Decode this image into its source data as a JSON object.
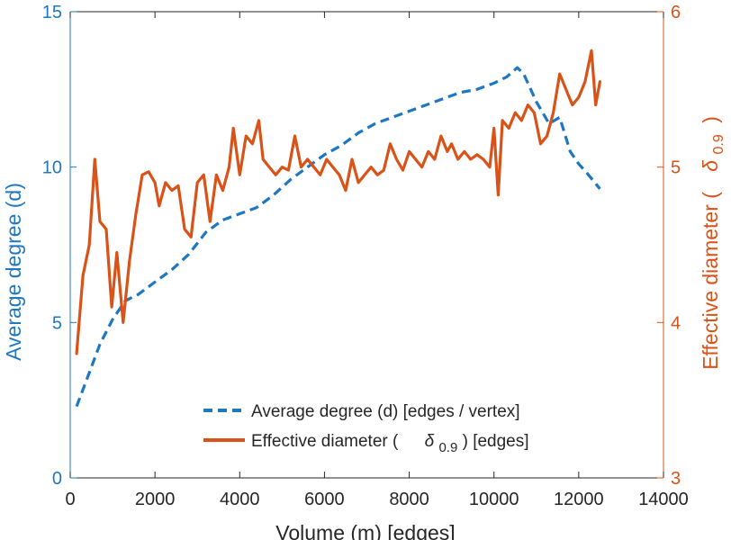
{
  "chart_data": {
    "type": "line",
    "title": "",
    "xlabel": "Volume (m) [edges]",
    "ylabel_left": "Average degree (d)",
    "ylabel_right_prefix": "Effective diameter (",
    "ylabel_right_symbol": "δ",
    "ylabel_right_sub": "0.9",
    "ylabel_right_suffix": ")",
    "xlim": [
      0,
      14000
    ],
    "xticks": [
      "0",
      "2000",
      "4000",
      "6000",
      "8000",
      "10000",
      "12000",
      "14000"
    ],
    "ylim_left": [
      0,
      15
    ],
    "yticks_left": [
      "0",
      "5",
      "10",
      "15"
    ],
    "ylim_right": [
      3,
      6
    ],
    "yticks_right": [
      "3",
      "4",
      "5",
      "6"
    ],
    "legend_position": "bottom-right",
    "colors": {
      "left_axis": "#1f77c0",
      "right_axis": "#d95319",
      "text": "#262626"
    },
    "series": [
      {
        "name": "Average degree (d) [edges / vertex]",
        "axis": "left",
        "style": "dashed",
        "color": "#1f77c0",
        "x": [
          150,
          400,
          700,
          1000,
          1300,
          1600,
          2000,
          2400,
          2800,
          3200,
          3600,
          4000,
          4400,
          4800,
          5200,
          5600,
          6000,
          6400,
          6800,
          7200,
          7600,
          8000,
          8400,
          8800,
          9200,
          9600,
          10000,
          10300,
          10550,
          10700,
          11000,
          11300,
          11550,
          11800,
          12000,
          12200,
          12500
        ],
        "values": [
          2.3,
          3.2,
          4.3,
          5.1,
          5.7,
          5.9,
          6.3,
          6.7,
          7.2,
          7.9,
          8.3,
          8.5,
          8.7,
          9.1,
          9.6,
          10.0,
          10.4,
          10.7,
          11.1,
          11.4,
          11.6,
          11.8,
          12.0,
          12.2,
          12.4,
          12.5,
          12.7,
          12.9,
          13.2,
          13.0,
          12.1,
          11.4,
          11.6,
          10.5,
          10.1,
          9.8,
          9.3
        ]
      },
      {
        "name_prefix": "Effective diameter (",
        "name_symbol": "δ",
        "name_sub": "0.9",
        "name_suffix": ") [edges]",
        "axis": "right",
        "style": "solid",
        "color": "#d95319",
        "x": [
          150,
          300,
          450,
          580,
          700,
          850,
          980,
          1100,
          1250,
          1400,
          1550,
          1700,
          1850,
          2000,
          2100,
          2250,
          2400,
          2550,
          2700,
          2850,
          3000,
          3150,
          3300,
          3450,
          3600,
          3750,
          3850,
          4000,
          4150,
          4300,
          4450,
          4550,
          4700,
          4850,
          5000,
          5150,
          5300,
          5450,
          5600,
          5750,
          5900,
          6050,
          6200,
          6350,
          6500,
          6650,
          6800,
          6950,
          7100,
          7250,
          7400,
          7550,
          7700,
          7850,
          8000,
          8150,
          8300,
          8450,
          8600,
          8750,
          8900,
          9000,
          9150,
          9300,
          9450,
          9600,
          9750,
          9900,
          10000,
          10100,
          10200,
          10350,
          10500,
          10650,
          10800,
          10950,
          11100,
          11250,
          11400,
          11550,
          11700,
          11850,
          12000,
          12150,
          12300,
          12400,
          12500
        ],
        "values": [
          3.8,
          4.3,
          4.5,
          5.05,
          4.65,
          4.6,
          4.1,
          4.45,
          4.0,
          4.4,
          4.7,
          4.95,
          4.97,
          4.9,
          4.75,
          4.9,
          4.85,
          4.88,
          4.6,
          4.55,
          4.9,
          4.95,
          4.65,
          4.95,
          4.85,
          5.0,
          5.25,
          4.95,
          5.2,
          5.15,
          5.3,
          5.05,
          5.0,
          4.95,
          5.0,
          4.98,
          5.2,
          5.0,
          5.05,
          5.0,
          4.95,
          5.05,
          5.0,
          4.95,
          4.85,
          5.05,
          4.9,
          4.95,
          5.0,
          4.95,
          4.98,
          5.15,
          5.05,
          4.98,
          5.1,
          5.05,
          5.0,
          5.1,
          5.05,
          5.2,
          5.1,
          5.15,
          5.05,
          5.1,
          5.05,
          5.08,
          5.05,
          5.0,
          5.25,
          4.82,
          5.3,
          5.25,
          5.35,
          5.3,
          5.4,
          5.35,
          5.15,
          5.2,
          5.35,
          5.6,
          5.5,
          5.4,
          5.45,
          5.55,
          5.75,
          5.4,
          5.55
        ]
      }
    ]
  }
}
